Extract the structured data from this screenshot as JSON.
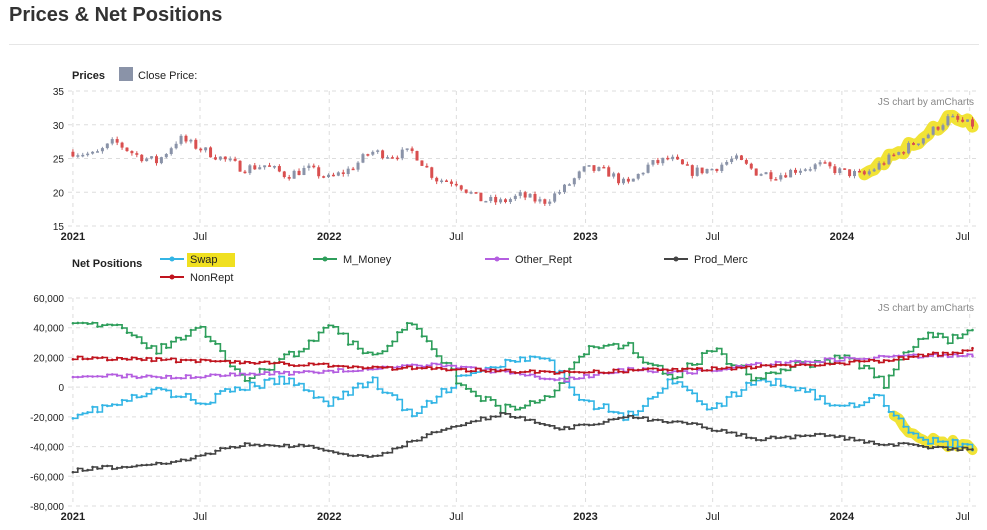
{
  "page": {
    "title": "Prices & Net Positions"
  },
  "colors": {
    "candle_up": "#8a93a8",
    "candle_down": "#d94f4f",
    "swap": "#33b5e5",
    "m_money": "#2e9e5b",
    "other_rept": "#b45ee0",
    "prod_merc": "#444444",
    "nonrept": "#c0141e",
    "highlight": "#f0e020",
    "grid": "#dddddd"
  },
  "chart_data": [
    {
      "type": "candlestick",
      "panel_label": "Prices",
      "legend": [
        {
          "name": "Close Price:",
          "color": "#8a93a8"
        }
      ],
      "watermark": "JS chart by amCharts",
      "ylim": [
        15,
        35
      ],
      "yticks": [
        "15",
        "20",
        "25",
        "30",
        "35"
      ],
      "xticks": [
        "2021",
        "Jul",
        "2022",
        "Jul",
        "2023",
        "Jul",
        "2024",
        "Jul"
      ],
      "xrange": [
        "2020-12-25",
        "2024-07-10"
      ],
      "close_anchors": [
        [
          "2021-01-01",
          26
        ],
        [
          "2021-02-01",
          25.5
        ],
        [
          "2021-03-01",
          27.5
        ],
        [
          "2021-04-01",
          25.5
        ],
        [
          "2021-05-01",
          24.5
        ],
        [
          "2021-06-01",
          28
        ],
        [
          "2021-07-01",
          26.5
        ],
        [
          "2021-08-01",
          25
        ],
        [
          "2021-09-01",
          23.5
        ],
        [
          "2021-10-01",
          24
        ],
        [
          "2021-11-01",
          22.5
        ],
        [
          "2021-12-01",
          23.5
        ],
        [
          "2022-01-01",
          22
        ],
        [
          "2022-02-01",
          23.5
        ],
        [
          "2022-03-01",
          26
        ],
        [
          "2022-04-01",
          25.5
        ],
        [
          "2022-05-01",
          26
        ],
        [
          "2022-06-01",
          22
        ],
        [
          "2022-07-01",
          21.5
        ],
        [
          "2022-08-01",
          19
        ],
        [
          "2022-09-01",
          18.5
        ],
        [
          "2022-10-01",
          19.5
        ],
        [
          "2022-11-01",
          18.5
        ],
        [
          "2022-12-01",
          20.5
        ],
        [
          "2023-01-01",
          23.5
        ],
        [
          "2023-02-01",
          23
        ],
        [
          "2023-03-01",
          21
        ],
        [
          "2023-04-01",
          24
        ],
        [
          "2023-05-01",
          25
        ],
        [
          "2023-06-01",
          23
        ],
        [
          "2023-07-01",
          23.5
        ],
        [
          "2023-08-01",
          25
        ],
        [
          "2023-09-01",
          23
        ],
        [
          "2023-10-01",
          22.5
        ],
        [
          "2023-11-01",
          23.5
        ],
        [
          "2023-12-01",
          24
        ],
        [
          "2024-01-01",
          23
        ],
        [
          "2024-02-01",
          22.5
        ],
        [
          "2024-03-01",
          24.5
        ],
        [
          "2024-04-01",
          26.5
        ],
        [
          "2024-05-01",
          28.5
        ],
        [
          "2024-06-01",
          31
        ],
        [
          "2024-07-01",
          30
        ]
      ],
      "highlight_from": "2024-02-01"
    },
    {
      "type": "line",
      "panel_label": "Net Positions",
      "watermark": "JS chart by amCharts",
      "ylim": [
        -80000,
        60000
      ],
      "yticks": [
        "-80,000",
        "-60,000",
        "-40,000",
        "-20,000",
        "0",
        "20,000",
        "40,000",
        "60,000"
      ],
      "xticks": [
        "2021",
        "Jul",
        "2022",
        "Jul",
        "2023",
        "Jul",
        "2024",
        "Jul"
      ],
      "xrange": [
        "2020-12-25",
        "2024-07-10"
      ],
      "series": [
        {
          "name": "Swap",
          "color": "#33b5e5",
          "values": [
            [
              "2021-01-01",
              -18000
            ],
            [
              "2021-03-01",
              -12000
            ],
            [
              "2021-05-01",
              -2000
            ],
            [
              "2021-07-01",
              -10000
            ],
            [
              "2021-09-01",
              0
            ],
            [
              "2021-11-01",
              5000
            ],
            [
              "2022-01-01",
              -10000
            ],
            [
              "2022-03-01",
              5000
            ],
            [
              "2022-05-01",
              -20000
            ],
            [
              "2022-07-01",
              5000
            ],
            [
              "2022-09-01",
              15000
            ],
            [
              "2022-11-01",
              20000
            ],
            [
              "2023-01-01",
              -10000
            ],
            [
              "2023-03-01",
              -20000
            ],
            [
              "2023-05-01",
              5000
            ],
            [
              "2023-07-01",
              -15000
            ],
            [
              "2023-09-01",
              5000
            ],
            [
              "2023-11-01",
              0
            ],
            [
              "2024-01-01",
              -15000
            ],
            [
              "2024-02-15",
              -5000
            ],
            [
              "2024-03-01",
              -10000
            ],
            [
              "2024-04-01",
              -28000
            ],
            [
              "2024-05-01",
              -36000
            ],
            [
              "2024-06-01",
              -38000
            ],
            [
              "2024-07-01",
              -40000
            ]
          ]
        },
        {
          "name": "M_Money",
          "color": "#2e9e5b",
          "values": [
            [
              "2021-01-01",
              46000
            ],
            [
              "2021-03-01",
              40000
            ],
            [
              "2021-05-01",
              25000
            ],
            [
              "2021-07-01",
              40000
            ],
            [
              "2021-09-01",
              5000
            ],
            [
              "2021-11-01",
              20000
            ],
            [
              "2022-01-01",
              40000
            ],
            [
              "2022-03-01",
              20000
            ],
            [
              "2022-05-01",
              45000
            ],
            [
              "2022-07-01",
              5000
            ],
            [
              "2022-09-01",
              -15000
            ],
            [
              "2022-11-01",
              -10000
            ],
            [
              "2023-01-01",
              25000
            ],
            [
              "2023-03-01",
              28000
            ],
            [
              "2023-05-01",
              5000
            ],
            [
              "2023-07-01",
              25000
            ],
            [
              "2023-09-01",
              5000
            ],
            [
              "2023-11-01",
              15000
            ],
            [
              "2024-01-01",
              20000
            ],
            [
              "2024-02-15",
              10000
            ],
            [
              "2024-03-01",
              0
            ],
            [
              "2024-04-01",
              25000
            ],
            [
              "2024-05-01",
              35000
            ],
            [
              "2024-06-01",
              32000
            ],
            [
              "2024-07-01",
              38000
            ]
          ]
        },
        {
          "name": "Other_Rept",
          "color": "#b45ee0",
          "values": [
            [
              "2021-01-01",
              8000
            ],
            [
              "2021-06-01",
              7000
            ],
            [
              "2021-12-01",
              10000
            ],
            [
              "2022-06-01",
              15000
            ],
            [
              "2022-09-01",
              10000
            ],
            [
              "2022-12-01",
              5000
            ],
            [
              "2023-03-01",
              12000
            ],
            [
              "2023-06-01",
              10000
            ],
            [
              "2023-09-01",
              15000
            ],
            [
              "2023-12-01",
              18000
            ],
            [
              "2024-03-01",
              20000
            ],
            [
              "2024-07-01",
              22000
            ]
          ]
        },
        {
          "name": "Prod_Merc",
          "color": "#444444",
          "values": [
            [
              "2021-01-01",
              -56000
            ],
            [
              "2021-06-01",
              -50000
            ],
            [
              "2021-09-01",
              -38000
            ],
            [
              "2021-12-01",
              -40000
            ],
            [
              "2022-03-01",
              -48000
            ],
            [
              "2022-06-01",
              -30000
            ],
            [
              "2022-09-01",
              -18000
            ],
            [
              "2022-12-01",
              -28000
            ],
            [
              "2023-03-01",
              -20000
            ],
            [
              "2023-06-01",
              -25000
            ],
            [
              "2023-09-01",
              -35000
            ],
            [
              "2023-12-01",
              -32000
            ],
            [
              "2024-03-01",
              -38000
            ],
            [
              "2024-07-01",
              -42000
            ]
          ]
        },
        {
          "name": "NonRept",
          "color": "#c0141e",
          "values": [
            [
              "2021-01-01",
              20000
            ],
            [
              "2021-06-01",
              18000
            ],
            [
              "2021-12-01",
              15000
            ],
            [
              "2022-06-01",
              12000
            ],
            [
              "2022-12-01",
              10000
            ],
            [
              "2023-06-01",
              12000
            ],
            [
              "2023-12-01",
              15000
            ],
            [
              "2024-03-01",
              18000
            ],
            [
              "2024-07-01",
              25000
            ]
          ]
        }
      ],
      "highlight_series": "Swap",
      "highlight_from": "2024-03-15"
    }
  ]
}
